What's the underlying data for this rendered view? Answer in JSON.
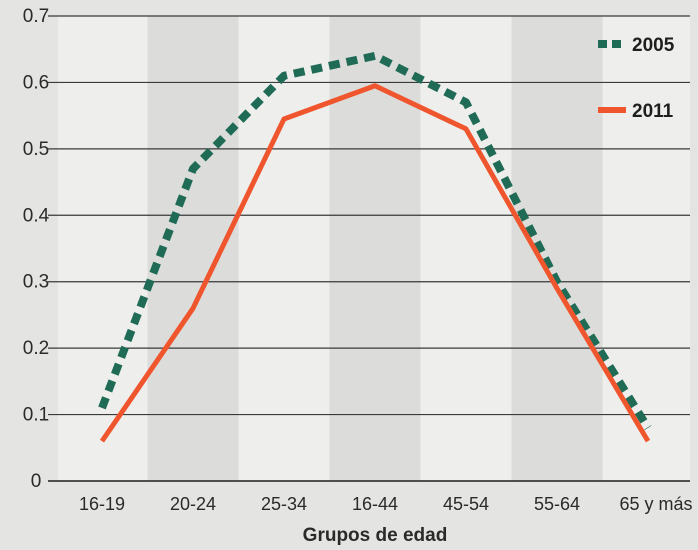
{
  "chart_data": {
    "type": "line",
    "title": "",
    "xlabel": "Grupos de edad",
    "ylabel": "",
    "categories": [
      "16-19",
      "20-24",
      "25-34",
      "16-44",
      "45-54",
      "55-64",
      "65 y más"
    ],
    "ylim": [
      0,
      0.7
    ],
    "yticks": [
      "0",
      "0.1",
      "0.2",
      "0.3",
      "0.4",
      "0.5",
      "0.6",
      "0.7"
    ],
    "grid": true,
    "legend_position": "top-right",
    "series": [
      {
        "name": "2005",
        "style": "dashed",
        "color": "#1f6b55",
        "values": [
          0.11,
          0.47,
          0.61,
          0.64,
          0.57,
          0.3,
          0.08
        ]
      },
      {
        "name": "2011",
        "style": "solid",
        "color": "#f0562e",
        "values": [
          0.06,
          0.26,
          0.545,
          0.595,
          0.53,
          0.29,
          0.06
        ]
      }
    ]
  }
}
